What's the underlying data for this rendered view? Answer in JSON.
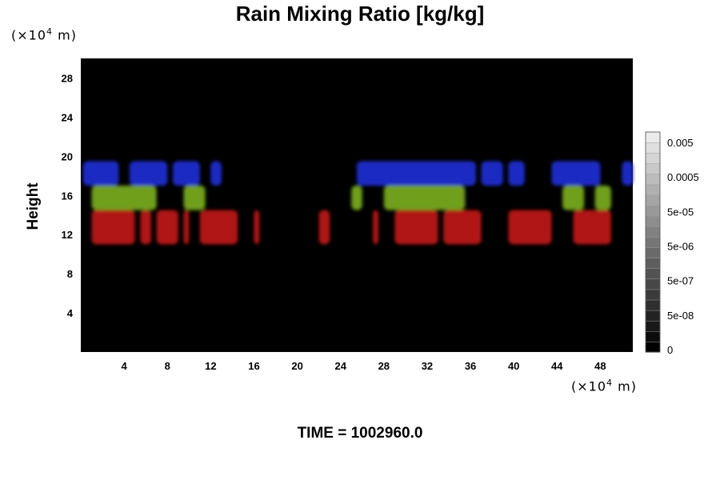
{
  "chart_data": {
    "type": "heatmap",
    "title": "Rain Mixing Ratio [kg/kg]",
    "ylabel": "Height",
    "xlabel": "",
    "x_unit": {
      "prefix": "(×10",
      "exp": "4",
      "suffix": " m)"
    },
    "y_unit": {
      "prefix": "(×10",
      "exp": "4",
      "suffix": " m)"
    },
    "xlim": [
      0,
      51
    ],
    "ylim": [
      0,
      30
    ],
    "x_ticks": [
      4,
      8,
      12,
      16,
      20,
      24,
      28,
      32,
      36,
      40,
      44,
      48
    ],
    "y_ticks": [
      4,
      8,
      12,
      16,
      20,
      24,
      28
    ],
    "background": "#000000",
    "colorbar": {
      "labels": [
        "0.005",
        "0.0005",
        "5e-05",
        "5e-06",
        "5e-07",
        "5e-08",
        "0"
      ],
      "levels": 21
    },
    "bands": [
      {
        "name": "blue",
        "color": "#1c2cc4",
        "y_range": [
          17,
          19.5
        ],
        "segments": [
          [
            0.2,
            3.5
          ],
          [
            4.5,
            8
          ],
          [
            8.5,
            11
          ],
          [
            12,
            13
          ],
          [
            25.5,
            36.5
          ],
          [
            37,
            39
          ],
          [
            39.5,
            41
          ],
          [
            43.5,
            48
          ],
          [
            50,
            51
          ]
        ]
      },
      {
        "name": "green",
        "color": "#6f9f1c",
        "y_range": [
          14.5,
          17
        ],
        "segments": [
          [
            1,
            7
          ],
          [
            9.5,
            11.5
          ],
          [
            25,
            26
          ],
          [
            28,
            35.5
          ],
          [
            44.5,
            46.5
          ],
          [
            47.5,
            49
          ]
        ]
      },
      {
        "name": "red",
        "color": "#b01414",
        "y_range": [
          11,
          14.5
        ],
        "segments": [
          [
            1,
            5
          ],
          [
            5.5,
            6.5
          ],
          [
            7,
            9
          ],
          [
            9.5,
            10
          ],
          [
            11,
            14.5
          ],
          [
            16,
            16.5
          ],
          [
            22,
            23
          ],
          [
            27,
            27.5
          ],
          [
            29,
            33
          ],
          [
            33.5,
            37
          ],
          [
            39.5,
            43.5
          ],
          [
            45.5,
            49
          ]
        ]
      }
    ],
    "time_prefix": "TIME = ",
    "time_value": "1002960.0"
  }
}
